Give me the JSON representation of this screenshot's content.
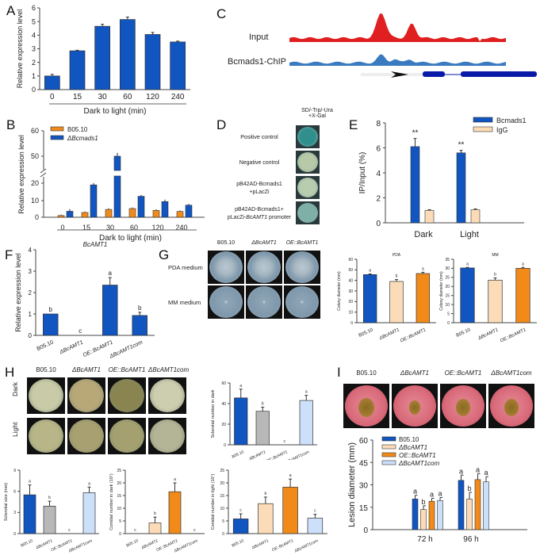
{
  "panels": {
    "A": "A",
    "B": "B",
    "C": "C",
    "D": "D",
    "E": "E",
    "F": "F",
    "G": "G",
    "H": "H",
    "I": "I"
  },
  "colors": {
    "blue": "#1155c0",
    "orange": "#f28a1a",
    "peach": "#fcdcb8",
    "gray": "#b8b8b8",
    "lightblue": "#cce0fa",
    "input_track": "#e02020",
    "chip_track": "#3a7ac0",
    "gene": "#0a1aa8"
  },
  "chart_data": [
    {
      "id": "A",
      "type": "bar",
      "categories": [
        "0",
        "15",
        "30",
        "60",
        "120",
        "240"
      ],
      "values": [
        1.0,
        2.85,
        4.65,
        5.15,
        4.05,
        3.5
      ],
      "errors": [
        0.12,
        0.04,
        0.15,
        0.18,
        0.15,
        0.06
      ],
      "title": "",
      "xlabel": "Dark to light (min)",
      "ylabel": "Relative expression level",
      "ylim": [
        0,
        6
      ],
      "yticks": [
        0,
        1,
        2,
        3,
        4,
        5,
        6
      ]
    },
    {
      "id": "B",
      "type": "bar",
      "categories": [
        "0",
        "15",
        "30",
        "60",
        "120",
        "240"
      ],
      "series": [
        {
          "name": "B05.10",
          "values": [
            1.0,
            2.8,
            4.6,
            5.1,
            4.0,
            3.4
          ],
          "errors": [
            0.1,
            0.1,
            0.2,
            0.2,
            0.2,
            0.1
          ]
        },
        {
          "name": "ΔBcmads1",
          "values": [
            3.5,
            19.0,
            50.0,
            12.3,
            9.2,
            7.1
          ],
          "errors": [
            0.8,
            0.6,
            1.0,
            0.3,
            0.7,
            0.3
          ]
        }
      ],
      "xlabel": "Dark to light (min)",
      "ylabel": "Relative expression level",
      "ylim": [
        0,
        60
      ],
      "axis_break": [
        22,
        45
      ],
      "yticks": [
        0,
        10,
        20,
        50,
        60
      ],
      "legend": "top-left"
    },
    {
      "id": "E",
      "type": "bar",
      "categories": [
        "Dark",
        "Light"
      ],
      "series": [
        {
          "name": "Bcmads1",
          "values": [
            6.1,
            5.6
          ],
          "errors": [
            0.65,
            0.2
          ],
          "annot": [
            "**",
            "**"
          ]
        },
        {
          "name": "IgG",
          "values": [
            1.0,
            1.05
          ],
          "errors": [
            0.05,
            0.06
          ]
        }
      ],
      "ylabel": "IP/Input (%)",
      "ylim": [
        0,
        8
      ],
      "yticks": [
        0,
        2,
        4,
        6,
        8
      ],
      "legend": "top-right"
    },
    {
      "id": "F",
      "type": "bar",
      "title": "BcAMT1",
      "categories": [
        "B05.10",
        "ΔBcAMT1",
        "OE::BcAMT1",
        "ΔBcAMT1com"
      ],
      "values": [
        1.0,
        0.0,
        2.35,
        0.93
      ],
      "errors": [
        0.0,
        0.0,
        0.35,
        0.15
      ],
      "letters": [
        "b",
        "c",
        "a",
        "b"
      ],
      "ylabel": "Relative expression level",
      "ylim": [
        0,
        4
      ],
      "yticks": [
        0,
        1,
        2,
        3,
        4
      ]
    },
    {
      "id": "G-PDA",
      "type": "bar",
      "title": "PDA",
      "categories": [
        "B05.10",
        "ΔBcAMT1",
        "OE::BcAMT1"
      ],
      "values": [
        45.5,
        39.0,
        46.5
      ],
      "errors": [
        0.6,
        1.8,
        1.2
      ],
      "letters": [
        "a",
        "b",
        "a"
      ],
      "ylabel": "Colony diameter (mm)",
      "ylim": [
        0,
        60
      ],
      "yticks": [
        0,
        10,
        20,
        30,
        40,
        50,
        60
      ]
    },
    {
      "id": "G-MM",
      "type": "bar",
      "title": "MM",
      "categories": [
        "B05.10",
        "ΔBcAMT1",
        "OE::BcAMT1"
      ],
      "values": [
        30.2,
        23.5,
        30.0
      ],
      "errors": [
        0.3,
        1.2,
        0.5
      ],
      "letters": [
        "a",
        "b",
        "a"
      ],
      "ylabel": "Colony diameter (mm)",
      "ylim": [
        0,
        35
      ],
      "yticks": [
        0,
        5,
        10,
        15,
        20,
        25,
        30,
        35
      ]
    },
    {
      "id": "H-num",
      "type": "bar",
      "categories": [
        "B05.10",
        "ΔBcAMT1",
        "OE::BcAMT1",
        "ΔBcAMT1com"
      ],
      "values": [
        45.5,
        32.5,
        0,
        43.0
      ],
      "errors": [
        8.5,
        4.0,
        0,
        5.0
      ],
      "letters": [
        "a",
        "b",
        "c",
        "a"
      ],
      "ylabel": "Sclerotial number in dark",
      "ylim": [
        0,
        60
      ],
      "yticks": [
        0,
        20,
        40,
        60
      ]
    },
    {
      "id": "H-size",
      "type": "bar",
      "categories": [
        "B05.10",
        "ΔBcAMT1",
        "OE::BcAMT1",
        "ΔBcAMT1com"
      ],
      "values": [
        5.5,
        3.9,
        0,
        5.8
      ],
      "errors": [
        1.4,
        0.7,
        0,
        0.8
      ],
      "letters": [
        "a",
        "b",
        "c",
        "a"
      ],
      "ylabel": "Sclerotial size (mm)",
      "ylim": [
        0,
        9
      ],
      "yticks": [
        0,
        3,
        6,
        9
      ]
    },
    {
      "id": "H-con-dark",
      "type": "bar",
      "categories": [
        "B05.10",
        "ΔBcAMT1",
        "OE::BcAMT1",
        "ΔBcAMT1com"
      ],
      "values": [
        0,
        4.2,
        16.5,
        0
      ],
      "errors": [
        0,
        2.3,
        3.5,
        0
      ],
      "letters": [
        "c",
        "b",
        "a",
        "c"
      ],
      "ylabel": "Conidial number in dark (10^7)",
      "ylim": [
        0,
        25
      ],
      "yticks": [
        0,
        5,
        10,
        15,
        20,
        25
      ]
    },
    {
      "id": "H-con-light",
      "type": "bar",
      "categories": [
        "B05.10",
        "ΔBcAMT1",
        "OE::BcAMT1",
        "ΔBcAMT1com"
      ],
      "values": [
        5.8,
        11.8,
        18.3,
        6.1
      ],
      "errors": [
        2.0,
        2.6,
        3.2,
        1.5
      ],
      "letters": [
        "c",
        "b",
        "a",
        "c"
      ],
      "ylabel": "Conidial number in light (10^7)",
      "ylim": [
        0,
        25
      ],
      "yticks": [
        0,
        5,
        10,
        15,
        20,
        25
      ]
    },
    {
      "id": "I",
      "type": "bar",
      "categories": [
        "72 h",
        "96 h"
      ],
      "series": [
        {
          "name": "B05.10",
          "values": [
            20.5,
            33.0
          ],
          "errors": [
            2.5,
            3.5
          ],
          "letters": [
            "a",
            "a"
          ]
        },
        {
          "name": "ΔBcAMT1",
          "values": [
            13.5,
            20.5
          ],
          "errors": [
            2.5,
            4.5
          ],
          "letters": [
            "b",
            "b"
          ]
        },
        {
          "name": "OE::BcAMT1",
          "values": [
            19.0,
            33.5
          ],
          "errors": [
            2.0,
            4.0
          ],
          "letters": [
            "a",
            "a"
          ]
        },
        {
          "name": "ΔBcAMT1com",
          "values": [
            19.5,
            32.0
          ],
          "errors": [
            2.0,
            3.5
          ],
          "letters": [
            "a",
            "a"
          ]
        }
      ],
      "ylabel": "Lesion diameter (mm)",
      "ylim": [
        0,
        60
      ],
      "yticks": [
        0,
        15,
        30,
        45,
        60
      ],
      "legend": "top-left"
    }
  ],
  "C": {
    "tracks": [
      "Input",
      "Bcmads1-ChIP"
    ]
  },
  "D": {
    "header_line1": "SD/-Trp/-Ura",
    "header_line2": "+X-Gal",
    "rows": [
      {
        "l1": "Positive control",
        "l2": ""
      },
      {
        "l1": "Negative control",
        "l2": ""
      },
      {
        "l1": "pB42AD-Bcmads1",
        "l2": "+pLacZi"
      },
      {
        "l1": "pB42AD-Bcmads1+",
        "l2": "pLacZi-BcAMT1 promoter"
      }
    ]
  },
  "G": {
    "cols": [
      "B05.10",
      "ΔBcAMT1",
      "OE::BcAMT1"
    ],
    "rows": [
      "PDA medium",
      "MM medium"
    ]
  },
  "H": {
    "cols": [
      "B05.10",
      "ΔBcAMT1",
      "OE::BcAMT1",
      "ΔBcAMT1com"
    ],
    "rows": [
      "Dark",
      "Light"
    ]
  },
  "I": {
    "cols": [
      "B05.10",
      "ΔBcAMT1",
      "OE::BcAMT1",
      "ΔBcAMT1com"
    ]
  }
}
